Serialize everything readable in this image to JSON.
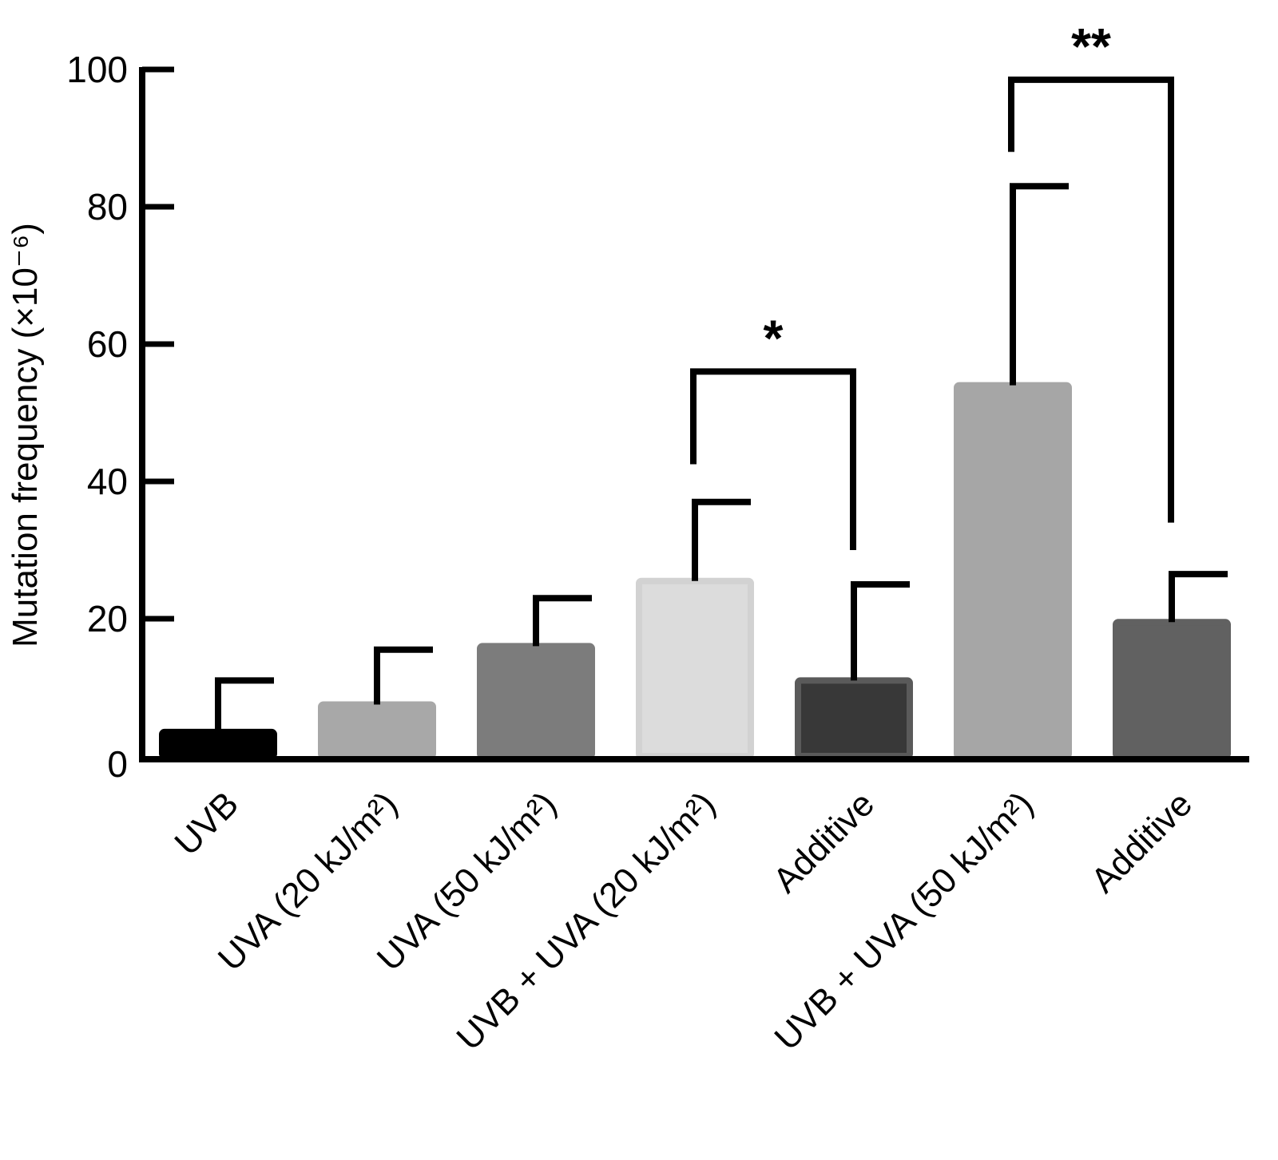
{
  "chart_data": {
    "type": "bar",
    "title": "",
    "xlabel": "",
    "ylabel": "Mutation frequency (×10⁻⁶)",
    "ylim": [
      0,
      100
    ],
    "yticks": [
      "0",
      "20",
      "40",
      "60",
      "80",
      "100"
    ],
    "grid": false,
    "categories": [
      "UVB",
      "UVA (20 kJ/m²)",
      "UVA (50 kJ/m²)",
      "UVB + UVA (20 kJ/m²)",
      "Additive",
      "UVB + UVA (50 kJ/m²)",
      "Additive"
    ],
    "values": [
      3.5,
      7.5,
      16,
      25.5,
      11,
      54,
      19.5
    ],
    "error_upper": [
      7.5,
      8,
      7,
      11.5,
      14,
      29,
      7
    ],
    "colors": [
      "#000000",
      "#a8a8a8",
      "#7c7c7c",
      "#dcdcdc",
      "#383838",
      "#a6a6a6",
      "#616161"
    ],
    "edge_colors": [
      "#000000",
      "#a8a8a8",
      "#7c7c7c",
      "#d2d2d2",
      "#5a5a5a",
      "#a6a6a6",
      "#616161"
    ],
    "significance": [
      {
        "from": 3,
        "to": 4,
        "label": "*",
        "level": 56,
        "left_drop": 42.5,
        "right_drop": 30
      },
      {
        "from": 5,
        "to": 6,
        "label": "**",
        "level": 98.5,
        "left_drop": 88,
        "right_drop": 34
      }
    ]
  }
}
